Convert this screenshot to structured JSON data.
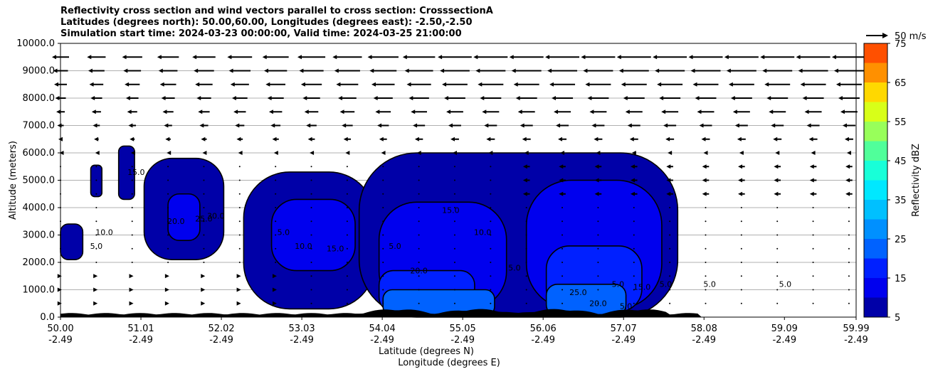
{
  "chart_data": {
    "type": "contourf",
    "title_lines": [
      "Reflectivity cross section and wind vectors parallel to cross section: CrosssectionA",
      "Latitudes (degrees north): 50.00,60.00, Longitudes (degrees east): -2.50,-2.50",
      "Simulation start time: 2024-03-23 00:00:00, Valid time: 2024-03-25 21:00:00"
    ],
    "ylabel": "Altitude (meters)",
    "xlabel_lat": "Latitude (degrees N)",
    "xlabel_lon": "Longitude (degrees E)",
    "ylim": [
      0,
      10000
    ],
    "yticks": [
      0,
      1000,
      2000,
      3000,
      4000,
      5000,
      6000,
      7000,
      8000,
      9000,
      10000
    ],
    "ytick_labels": [
      "0.0",
      "1000.0",
      "2000.0",
      "3000.0",
      "4000.0",
      "5000.0",
      "6000.0",
      "7000.0",
      "8000.0",
      "9000.0",
      "10000.0"
    ],
    "xlim": [
      50.0,
      59.99
    ],
    "xticks": [
      50.0,
      51.01,
      52.02,
      53.03,
      54.04,
      55.05,
      56.06,
      57.07,
      58.08,
      59.09,
      59.99
    ],
    "xtick_lat_labels": [
      "50.00",
      "51.01",
      "52.02",
      "53.03",
      "54.04",
      "55.05",
      "56.06",
      "57.07",
      "58.08",
      "59.09",
      "59.99"
    ],
    "xtick_lon_labels": [
      "-2.49",
      "-2.49",
      "-2.49",
      "-2.49",
      "-2.49",
      "-2.49",
      "-2.49",
      "-2.49",
      "-2.49",
      "-2.49",
      "-2.49"
    ],
    "grid": "horizontal",
    "colorbar": {
      "label": "Reflectivity dBZ",
      "levels": [
        5,
        10,
        15,
        20,
        25,
        30,
        35,
        40,
        45,
        50,
        55,
        60,
        65,
        70,
        75
      ],
      "tick_labels": [
        "5",
        "15",
        "25",
        "35",
        "45",
        "55",
        "65",
        "75"
      ],
      "tick_values": [
        5,
        15,
        25,
        35,
        45,
        55,
        65,
        75
      ],
      "colors": [
        "#0000a8",
        "#0000ee",
        "#0020ff",
        "#0062ff",
        "#0090ff",
        "#00c0ff",
        "#00e8ff",
        "#18ffd8",
        "#50ff9a",
        "#98ff5a",
        "#d8ff18",
        "#ffd800",
        "#ff9000",
        "#ff5000",
        "#ff1000",
        "#a80000"
      ]
    },
    "wind_key": {
      "label": "50 m/s",
      "speed": 50
    },
    "reflectivity_cells": [
      {
        "lat_min": 50.0,
        "lat_max": 50.28,
        "alt_min": 2100,
        "alt_max": 3400,
        "dbz": 5
      },
      {
        "lat_min": 50.38,
        "lat_max": 50.52,
        "alt_min": 4400,
        "alt_max": 5550,
        "dbz": 5
      },
      {
        "lat_min": 50.73,
        "lat_max": 50.93,
        "alt_min": 4300,
        "alt_max": 6250,
        "dbz": 5
      },
      {
        "lat_min": 51.05,
        "lat_max": 52.05,
        "alt_min": 2100,
        "alt_max": 5800,
        "dbz": 5
      },
      {
        "lat_min": 51.35,
        "lat_max": 51.75,
        "alt_min": 2800,
        "alt_max": 4500,
        "dbz": 10
      },
      {
        "lat_min": 52.3,
        "lat_max": 53.95,
        "alt_min": 300,
        "alt_max": 5300,
        "dbz": 5
      },
      {
        "lat_min": 52.65,
        "lat_max": 53.7,
        "alt_min": 1700,
        "alt_max": 4300,
        "dbz": 10
      },
      {
        "lat_min": 53.75,
        "lat_max": 57.75,
        "alt_min": 0,
        "alt_max": 6000,
        "dbz": 5
      },
      {
        "lat_min": 54.0,
        "lat_max": 55.6,
        "alt_min": 300,
        "alt_max": 4200,
        "dbz": 10
      },
      {
        "lat_min": 55.85,
        "lat_max": 57.55,
        "alt_min": 300,
        "alt_max": 5000,
        "dbz": 10
      },
      {
        "lat_min": 54.0,
        "lat_max": 55.2,
        "alt_min": 200,
        "alt_max": 1700,
        "dbz": 15
      },
      {
        "lat_min": 56.1,
        "lat_max": 57.3,
        "alt_min": 200,
        "alt_max": 2600,
        "dbz": 15
      },
      {
        "lat_min": 54.05,
        "lat_max": 55.45,
        "alt_min": 50,
        "alt_max": 1000,
        "dbz": 20
      },
      {
        "lat_min": 56.1,
        "lat_max": 57.1,
        "alt_min": 50,
        "alt_max": 1200,
        "dbz": 20
      }
    ],
    "contour_labels": [
      "5.0",
      "10.0",
      "15.0",
      "20.0",
      "25.0",
      "30.0",
      "5.0",
      "10.0",
      "15.0",
      "5.0",
      "15.0",
      "20.0",
      "10.0",
      "5.0",
      "25.0",
      "20.0",
      "5.0",
      "5.0",
      "15.0",
      "5.0",
      "5.0",
      "5.0"
    ],
    "wind_vectors": {
      "lat_columns": [
        50.0,
        50.45,
        50.9,
        51.35,
        51.8,
        52.25,
        52.7,
        53.15,
        53.6,
        54.05,
        54.5,
        54.95,
        55.4,
        55.85,
        56.3,
        56.75,
        57.2,
        57.65,
        58.1,
        58.55,
        59.0,
        59.45,
        59.9
      ],
      "altitudes": [
        500,
        1000,
        1500,
        2000,
        2500,
        3000,
        3500,
        4000,
        4500,
        5000,
        5500,
        6000,
        6500,
        7000,
        7500,
        8000,
        8500,
        9000,
        9500
      ],
      "note": "parallel wind component (m/s), negative = toward south"
    }
  }
}
